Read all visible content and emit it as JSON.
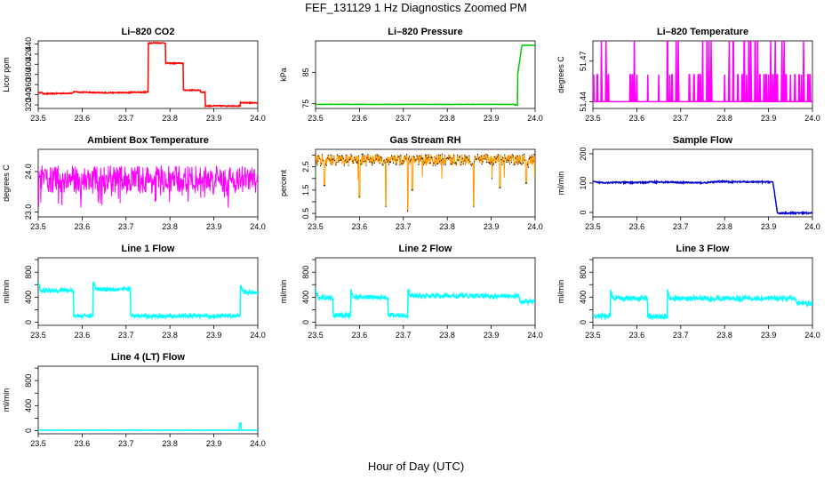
{
  "page": {
    "title": "FEF_131129  1 Hz Diagnostics Zoomed PM",
    "xlabel": "Hour of Day (UTC)"
  },
  "chart_data": [
    {
      "id": "co2",
      "type": "line",
      "title": "Li–820 CO2",
      "ylabel": "Licor ppm",
      "color": "#ff0000",
      "xlim": [
        23.5,
        24.0
      ],
      "ylim": [
        313,
        446
      ],
      "xticks": [
        "23.5",
        "23.6",
        "23.7",
        "23.8",
        "23.9",
        "24.0"
      ],
      "yticks": [
        320,
        340,
        360,
        380,
        400,
        420,
        440
      ],
      "noise": 1.0,
      "series": [
        {
          "x": [
            23.5,
            23.51,
            23.51,
            23.52,
            23.57,
            23.58,
            23.58,
            23.59,
            23.59,
            23.62,
            23.62,
            23.66,
            23.66,
            23.71,
            23.71,
            23.75,
            23.75,
            23.79,
            23.79,
            23.83,
            23.83,
            23.87,
            23.87,
            23.88,
            23.88,
            23.96,
            23.96,
            24.0
          ],
          "y": [
            344,
            344,
            342,
            342,
            343,
            343,
            346,
            346,
            345,
            345,
            344,
            344,
            344,
            344,
            345,
            345,
            442,
            442,
            402,
            402,
            349,
            349,
            345,
            345,
            318,
            318,
            324,
            324
          ]
        }
      ]
    },
    {
      "id": "pressure",
      "type": "line",
      "title": "Li–820 Pressure",
      "ylabel": "kPa",
      "color": "#00cc00",
      "xlim": [
        23.5,
        24.0
      ],
      "ylim": [
        73.5,
        95
      ],
      "xticks": [
        "23.5",
        "23.6",
        "23.7",
        "23.8",
        "23.9",
        "24.0"
      ],
      "yticks": [
        75,
        85
      ],
      "noise": 0.05,
      "series": [
        {
          "x": [
            23.5,
            23.95,
            23.96,
            23.96,
            23.97,
            24.0
          ],
          "y": [
            74.8,
            74.8,
            74.5,
            84,
            93.6,
            93.6
          ]
        }
      ]
    },
    {
      "id": "li820-temp",
      "type": "line",
      "title": "Li–820 Temperature",
      "ylabel": "degrees C",
      "color": "#ff00ff",
      "xlim": [
        23.5,
        24.0
      ],
      "ylim": [
        51.435,
        51.485
      ],
      "xticks": [
        "23.5",
        "23.6",
        "23.7",
        "23.8",
        "23.9",
        "24.0"
      ],
      "yticks": [
        51.44,
        51.47
      ],
      "ytick_labels": [
        "51.44",
        "51.47"
      ],
      "base": 51.44,
      "levels": [
        51.46,
        51.485
      ],
      "spikes": [
        23.5,
        23.502,
        23.51,
        23.52,
        23.53,
        23.535,
        23.585,
        23.59,
        23.595,
        23.6,
        23.625,
        23.65,
        23.67,
        23.675,
        23.68,
        23.69,
        23.695,
        23.72,
        23.73,
        23.74,
        23.745,
        23.75,
        23.76,
        23.765,
        23.77,
        23.8,
        23.81,
        23.82,
        23.83,
        23.83,
        23.84,
        23.845,
        23.85,
        23.855,
        23.86,
        23.87,
        23.875,
        23.88,
        23.89,
        23.895,
        23.9,
        23.905,
        23.91,
        23.915,
        23.92,
        23.93,
        23.935,
        23.94,
        23.95,
        23.96,
        23.97,
        23.975,
        23.98,
        23.99,
        23.995
      ]
    },
    {
      "id": "ambient-box-temp",
      "type": "line",
      "title": "Ambient Box Temperature",
      "ylabel": "degrees C",
      "color": "#ff00ff",
      "xlim": [
        23.5,
        24.0
      ],
      "ylim": [
        22.88,
        24.55
      ],
      "xticks": [
        "23.5",
        "23.6",
        "23.7",
        "23.8",
        "23.9",
        "24.0"
      ],
      "yticks": [
        23.0,
        24.0
      ],
      "ytick_labels": [
        "23.0",
        "24.0"
      ],
      "base": 23.8,
      "amp": 0.35,
      "dips": 0.6
    },
    {
      "id": "gas-stream-rh",
      "type": "line",
      "title": "Gas Stream RH",
      "ylabel": "percent",
      "color": "#ff9900",
      "xlim": [
        23.5,
        24.0
      ],
      "ylim": [
        0.35,
        3.25
      ],
      "xticks": [
        "23.5",
        "23.6",
        "23.7",
        "23.8",
        "23.9",
        "24.0"
      ],
      "yticks": [
        0.5,
        1.0,
        1.5,
        2.0,
        2.5,
        3.0
      ],
      "ytick_labels": [
        "0.5",
        "1.5",
        "2.5"
      ],
      "base": 2.8,
      "amp": 0.25,
      "dips": [
        [
          23.52,
          1.7
        ],
        [
          23.6,
          1.2
        ],
        [
          23.66,
          0.8
        ],
        [
          23.71,
          0.6
        ],
        [
          23.72,
          1.5
        ],
        [
          23.86,
          0.8
        ],
        [
          23.92,
          1.6
        ],
        [
          23.98,
          1.8
        ]
      ]
    },
    {
      "id": "sample-flow",
      "type": "line",
      "title": "Sample Flow",
      "ylabel": "ml/min",
      "color": "#0000cc",
      "xlim": [
        23.5,
        24.0
      ],
      "ylim": [
        -15,
        215
      ],
      "xticks": [
        "23.5",
        "23.6",
        "23.7",
        "23.8",
        "23.9",
        "24.0"
      ],
      "yticks": [
        0,
        100,
        200
      ],
      "noise": 2.5,
      "series": [
        {
          "x": [
            23.5,
            23.51,
            23.62,
            23.63,
            23.75,
            23.8,
            23.81,
            23.91,
            23.92,
            24.0
          ],
          "y": [
            105,
            102,
            102,
            104,
            101,
            106,
            104,
            104,
            -2,
            -2
          ]
        }
      ]
    },
    {
      "id": "line1-flow",
      "type": "line",
      "title": "Line 1 Flow",
      "ylabel": "ml/min",
      "color": "#00ffff",
      "xlim": [
        23.5,
        24.0
      ],
      "ylim": [
        -50,
        1030
      ],
      "xticks": [
        "23.5",
        "23.6",
        "23.7",
        "23.8",
        "23.9",
        "24.0"
      ],
      "yticks": [
        0,
        200,
        400,
        600,
        800,
        1000
      ],
      "ytick_labels": [
        "0",
        "400",
        "800"
      ],
      "noise": 30,
      "segments": [
        [
          23.5,
          23.58,
          510
        ],
        [
          23.58,
          23.625,
          100
        ],
        [
          23.625,
          23.71,
          530
        ],
        [
          23.71,
          23.96,
          100
        ],
        [
          23.96,
          24.0,
          480
        ]
      ]
    },
    {
      "id": "line2-flow",
      "type": "line",
      "title": "Line 2 Flow",
      "ylabel": "ml/min",
      "color": "#00ffff",
      "xlim": [
        23.5,
        24.0
      ],
      "ylim": [
        -50,
        1030
      ],
      "xticks": [
        "23.5",
        "23.6",
        "23.7",
        "23.8",
        "23.9",
        "24.0"
      ],
      "yticks": [
        0,
        200,
        400,
        600,
        800,
        1000
      ],
      "ytick_labels": [
        "0",
        "400",
        "800"
      ],
      "noise": 35,
      "segments": [
        [
          23.5,
          23.54,
          390
        ],
        [
          23.54,
          23.58,
          110
        ],
        [
          23.58,
          23.665,
          400
        ],
        [
          23.665,
          23.71,
          110
        ],
        [
          23.71,
          23.96,
          420
        ],
        [
          23.96,
          24.0,
          330
        ]
      ]
    },
    {
      "id": "line3-flow",
      "type": "line",
      "title": "Line 3 Flow",
      "ylabel": "ml/min",
      "color": "#00ffff",
      "xlim": [
        23.5,
        24.0
      ],
      "ylim": [
        -50,
        1030
      ],
      "xticks": [
        "23.5",
        "23.6",
        "23.7",
        "23.8",
        "23.9",
        "24.0"
      ],
      "yticks": [
        0,
        200,
        400,
        600,
        800,
        1000
      ],
      "ytick_labels": [
        "0",
        "400",
        "800"
      ],
      "noise": 40,
      "segments": [
        [
          23.5,
          23.54,
          100
        ],
        [
          23.54,
          23.625,
          380
        ],
        [
          23.625,
          23.67,
          90
        ],
        [
          23.67,
          23.96,
          380
        ],
        [
          23.96,
          24.0,
          300
        ]
      ]
    },
    {
      "id": "line4-flow",
      "type": "line",
      "title": "Line 4 (LT) Flow",
      "ylabel": "ml/min",
      "color": "#00ffff",
      "xlim": [
        23.5,
        24.0
      ],
      "ylim": [
        -50,
        1030
      ],
      "xticks": [
        "23.5",
        "23.6",
        "23.7",
        "23.8",
        "23.9",
        "24.0"
      ],
      "yticks": [
        0,
        200,
        400,
        600,
        800,
        1000
      ],
      "ytick_labels": [
        "0",
        "400",
        "800"
      ],
      "noise": 3,
      "segments": [
        [
          23.5,
          24.0,
          8
        ]
      ],
      "spike": [
        23.96,
        120
      ]
    }
  ]
}
